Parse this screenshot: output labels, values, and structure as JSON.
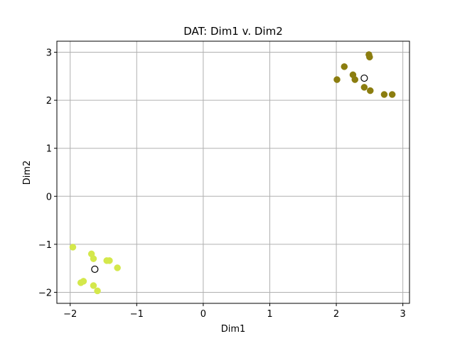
{
  "chart_data": {
    "type": "scatter",
    "title": "DAT: Dim1 v. Dim2",
    "xlabel": "Dim1",
    "ylabel": "Dim2",
    "xlim": [
      -2.2,
      3.1
    ],
    "ylim": [
      -2.23,
      3.23
    ],
    "xticks": [
      -2,
      -1,
      0,
      1,
      2,
      3
    ],
    "yticks": [
      -2,
      -1,
      0,
      1,
      2,
      3
    ],
    "grid": true,
    "series": [
      {
        "color": "#d4e84b",
        "points": [
          [
            -1.96,
            -1.06
          ],
          [
            -1.68,
            -1.2
          ],
          [
            -1.65,
            -1.3
          ],
          [
            -1.45,
            -1.34
          ],
          [
            -1.41,
            -1.34
          ],
          [
            -1.29,
            -1.49
          ],
          [
            -1.84,
            -1.8
          ],
          [
            -1.8,
            -1.77
          ],
          [
            -1.65,
            -1.86
          ],
          [
            -1.59,
            -1.97
          ]
        ]
      },
      {
        "color": "#8b7d0f",
        "points": [
          [
            2.01,
            2.43
          ],
          [
            2.12,
            2.7
          ],
          [
            2.25,
            2.53
          ],
          [
            2.28,
            2.43
          ],
          [
            2.42,
            2.27
          ],
          [
            2.49,
            2.95
          ],
          [
            2.5,
            2.9
          ],
          [
            2.51,
            2.2
          ],
          [
            2.72,
            2.12
          ],
          [
            2.84,
            2.12
          ]
        ]
      }
    ],
    "centroids": {
      "marker": "hollow-circle",
      "points": [
        [
          -1.63,
          -1.52
        ],
        [
          2.42,
          2.46
        ]
      ]
    }
  }
}
